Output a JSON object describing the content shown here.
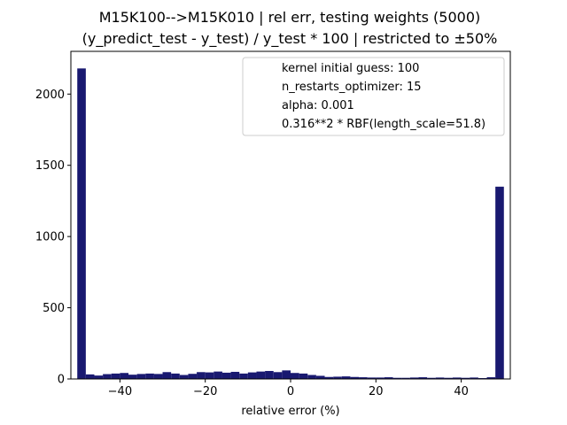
{
  "chart_data": {
    "type": "bar",
    "title_lines": [
      "M15K100-->M15K010 | rel err, testing weights (5000)",
      "(y_predict_test - y_test) / y_test * 100 | restricted to ±50%"
    ],
    "xlabel": "relative error (%)",
    "ylabel": "",
    "xlim": [
      -51.5,
      51.5
    ],
    "ylim": [
      0,
      2300
    ],
    "xticks": [
      -40,
      -20,
      0,
      20,
      40
    ],
    "xtick_labels": [
      "−40",
      "−20",
      "0",
      "20",
      "40"
    ],
    "yticks": [
      0,
      500,
      1000,
      1500,
      2000
    ],
    "ytick_labels": [
      "0",
      "500",
      "1000",
      "1500",
      "2000"
    ],
    "bar_color": "#191970",
    "bin_edges_start": -50,
    "bin_width": 2,
    "values": [
      2180,
      32,
      24,
      34,
      38,
      42,
      30,
      35,
      38,
      35,
      48,
      38,
      28,
      36,
      48,
      46,
      52,
      44,
      50,
      38,
      46,
      52,
      56,
      48,
      60,
      42,
      38,
      28,
      22,
      14,
      16,
      18,
      14,
      12,
      10,
      10,
      12,
      8,
      8,
      10,
      12,
      8,
      10,
      8,
      10,
      8,
      10,
      6,
      12,
      1350
    ],
    "legend": {
      "position": "upper-right",
      "entries": [
        "kernel initial guess: 100",
        "n_restarts_optimizer: 15",
        "alpha: 0.001",
        "0.316**2 * RBF(length_scale=51.8)"
      ]
    },
    "grid": false
  }
}
